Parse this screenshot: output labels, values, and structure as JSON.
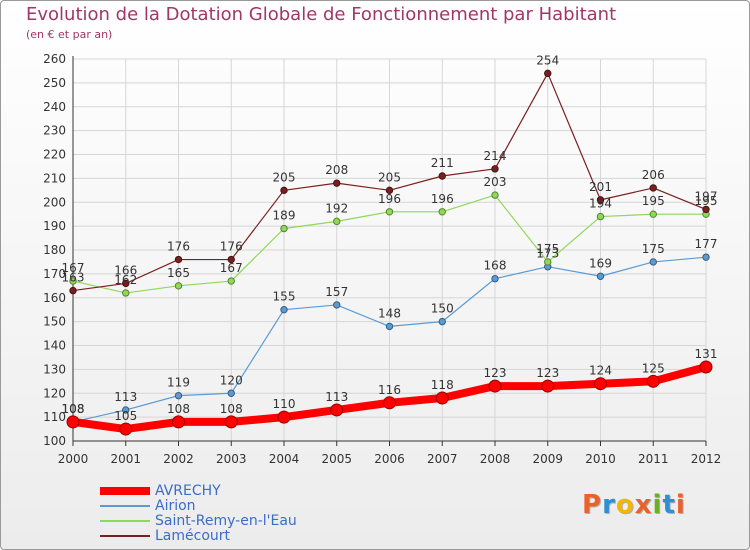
{
  "header": {
    "title": "Evolution de la Dotation Globale de Fonctionnement par Habitant",
    "subtitle": "(en € et par an)"
  },
  "logo": {
    "text": "Proxiti",
    "letters": [
      {
        "ch": "P",
        "color": "#e8622a"
      },
      {
        "ch": "r",
        "color": "#2d8fd4"
      },
      {
        "ch": "o",
        "color": "#f2b705"
      },
      {
        "ch": "x",
        "color": "#e8622a"
      },
      {
        "ch": "i",
        "color": "#6ab023"
      },
      {
        "ch": "t",
        "color": "#2d8fd4"
      },
      {
        "ch": "i",
        "color": "#e8622a"
      }
    ]
  },
  "chart_data": {
    "type": "line",
    "title": "Evolution de la Dotation Globale de Fonctionnement par Habitant",
    "subtitle": "(en € et par an)",
    "x": [
      "2000",
      "2001",
      "2002",
      "2003",
      "2004",
      "2005",
      "2006",
      "2007",
      "2008",
      "2009",
      "2010",
      "2011",
      "2012"
    ],
    "ylim": [
      100,
      260
    ],
    "yticks": [
      100,
      110,
      120,
      130,
      140,
      150,
      160,
      170,
      180,
      190,
      200,
      210,
      220,
      230,
      240,
      250,
      260
    ],
    "grid": true,
    "legend_position": "bottom-left",
    "series": [
      {
        "name": "AVRECHY",
        "color": "#ff0000",
        "values": [
          108,
          105,
          108,
          108,
          110,
          113,
          116,
          118,
          123,
          123,
          124,
          125,
          131
        ]
      },
      {
        "name": "Airion",
        "color": "#5b9bd5",
        "values": [
          108,
          113,
          119,
          120,
          155,
          157,
          148,
          150,
          168,
          173,
          169,
          175,
          177
        ]
      },
      {
        "name": "Saint-Remy-en-l'Eau",
        "color": "#8fd85a",
        "values": [
          167,
          162,
          165,
          167,
          189,
          192,
          196,
          196,
          203,
          175,
          194,
          195,
          195
        ]
      },
      {
        "name": "Lamécourt",
        "color": "#7a1f1f",
        "values": [
          163,
          166,
          176,
          176,
          205,
          208,
          205,
          211,
          214,
          254,
          201,
          206,
          197
        ]
      }
    ]
  }
}
